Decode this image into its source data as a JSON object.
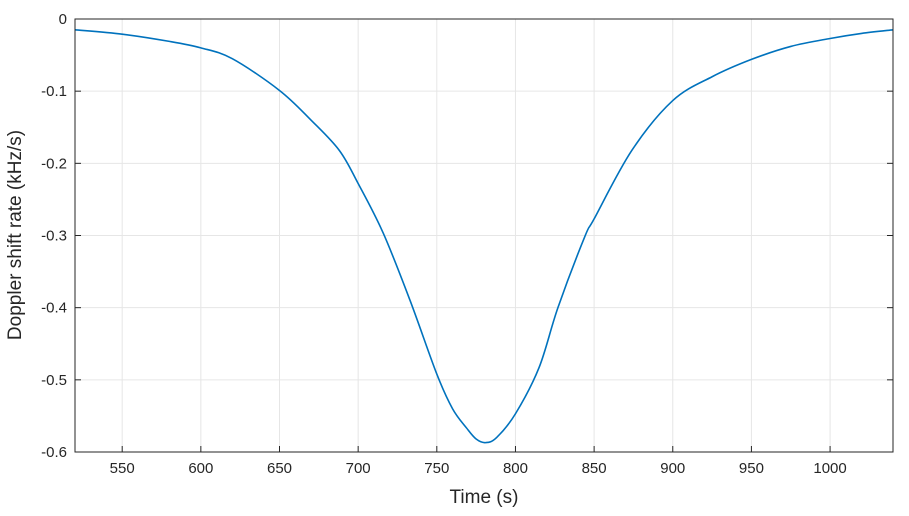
{
  "chart_data": {
    "type": "line",
    "title": "",
    "xlabel": "Time (s)",
    "ylabel": "Doppler shift rate (kHz/s)",
    "xlim": [
      520,
      1040
    ],
    "ylim": [
      -0.6,
      0
    ],
    "grid": true,
    "xticks": [
      550,
      600,
      650,
      700,
      750,
      800,
      850,
      900,
      950,
      1000
    ],
    "yticks": [
      0,
      -0.1,
      -0.2,
      -0.3,
      -0.4,
      -0.5,
      -0.6
    ],
    "color": "#0072bd",
    "series": [
      {
        "name": "Doppler shift rate",
        "x": [
          520,
          550,
          580,
          600,
          620,
          650,
          670,
          688,
          700,
          716,
          733,
          750,
          760,
          769,
          775,
          781,
          788,
          800,
          815,
          827,
          844,
          850,
          874,
          900,
          925,
          950,
          975,
          1000,
          1020,
          1040
        ],
        "y": [
          -0.015,
          -0.021,
          -0.031,
          -0.04,
          -0.055,
          -0.099,
          -0.14,
          -0.182,
          -0.228,
          -0.297,
          -0.39,
          -0.492,
          -0.54,
          -0.567,
          -0.582,
          -0.587,
          -0.58,
          -0.547,
          -0.483,
          -0.4,
          -0.302,
          -0.277,
          -0.182,
          -0.113,
          -0.08,
          -0.056,
          -0.038,
          -0.027,
          -0.02,
          -0.015
        ]
      }
    ]
  }
}
